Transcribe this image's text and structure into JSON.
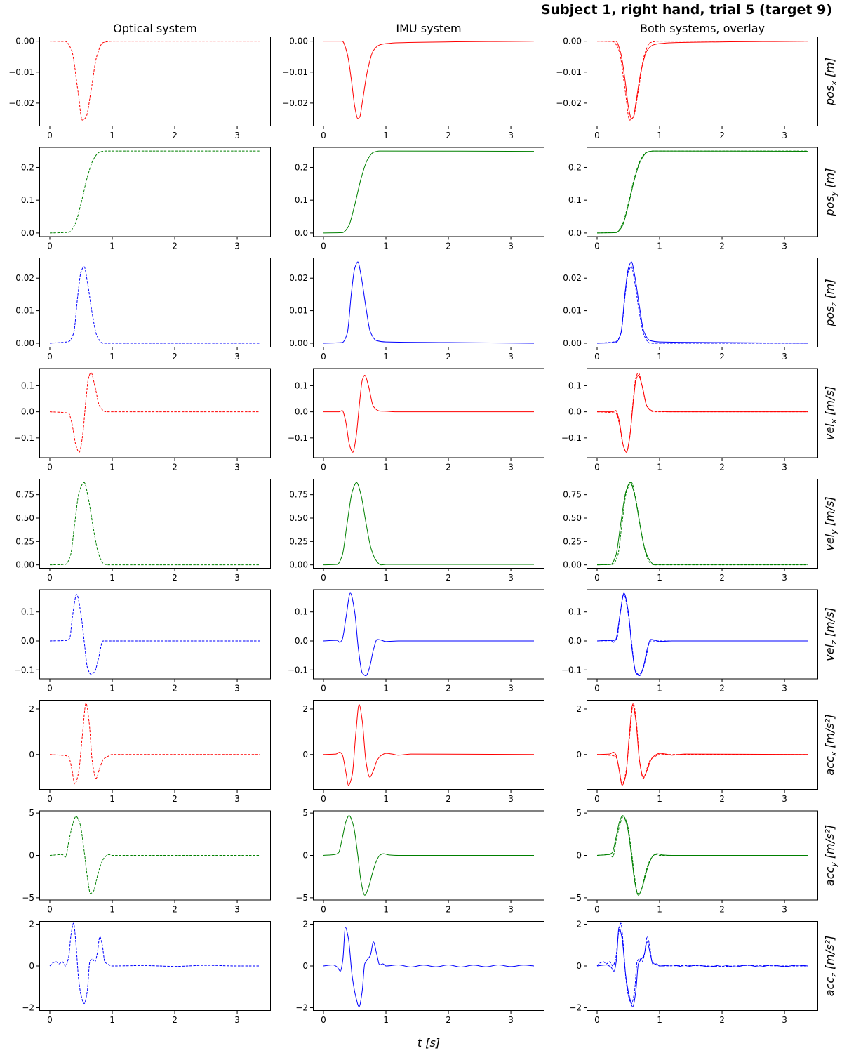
{
  "title": "Subject 1, right hand, trial 5 (target 9)",
  "column_titles": [
    "Optical system",
    "IMU system",
    "Both systems, overlay"
  ],
  "x_label": "t [s]",
  "chart_data": {
    "type": "line",
    "layout": "grid 9 rows x 3 columns",
    "x_range": [
      0,
      3.37
    ],
    "x_ticks": [
      "0",
      "1",
      "2",
      "3"
    ],
    "line_styles": {
      "optical": "dashed",
      "imu": "solid"
    },
    "rows": [
      {
        "label_main": "pos",
        "label_sub": "x",
        "unit": " [m]",
        "color": "#ff0000",
        "ylim": [
          -0.0275,
          0.0015
        ],
        "yticks": [
          "0.00",
          "−0.01",
          "−0.02"
        ],
        "ytick_values": [
          0,
          -0.01,
          -0.02
        ],
        "optical": {
          "t": [
            0,
            0.25,
            0.35,
            0.45,
            0.52,
            0.58,
            0.66,
            0.75,
            0.85,
            1.0,
            3.37
          ],
          "v": [
            0,
            -0.0001,
            -0.003,
            -0.016,
            -0.0255,
            -0.0245,
            -0.016,
            -0.005,
            -0.0005,
            0,
            0
          ]
        },
        "imu": {
          "t": [
            0,
            0.3,
            0.38,
            0.45,
            0.5,
            0.55,
            0.58,
            0.62,
            0.7,
            0.8,
            0.9,
            1.0,
            1.2,
            3.37
          ],
          "v": [
            0,
            0,
            -0.004,
            -0.013,
            -0.021,
            -0.025,
            -0.0245,
            -0.02,
            -0.01,
            -0.003,
            -0.0012,
            -0.0008,
            -0.0005,
            0
          ]
        }
      },
      {
        "label_main": "pos",
        "label_sub": "y",
        "unit": " [m]",
        "color": "#008000",
        "ylim": [
          -0.012,
          0.262
        ],
        "yticks": [
          "0.0",
          "0.1",
          "0.2"
        ],
        "ytick_values": [
          0,
          0.1,
          0.2
        ],
        "optical": {
          "t": [
            0,
            0.3,
            0.4,
            0.5,
            0.6,
            0.7,
            0.8,
            0.9,
            3.37
          ],
          "v": [
            0,
            0.002,
            0.025,
            0.09,
            0.17,
            0.225,
            0.247,
            0.25,
            0.25
          ]
        },
        "imu": {
          "t": [
            0,
            0.3,
            0.4,
            0.5,
            0.6,
            0.7,
            0.8,
            0.9,
            3.37
          ],
          "v": [
            0,
            0.001,
            0.02,
            0.085,
            0.165,
            0.222,
            0.246,
            0.25,
            0.249
          ]
        }
      },
      {
        "label_main": "pos",
        "label_sub": "z",
        "unit": " [m]",
        "color": "#0000ff",
        "ylim": [
          -0.0013,
          0.0263
        ],
        "yticks": [
          "0.00",
          "0.01",
          "0.02"
        ],
        "ytick_values": [
          0,
          0.01,
          0.02
        ],
        "optical": {
          "t": [
            0,
            0.3,
            0.38,
            0.45,
            0.5,
            0.55,
            0.6,
            0.68,
            0.75,
            0.85,
            1.0,
            3.37
          ],
          "v": [
            0,
            0.0005,
            0.003,
            0.015,
            0.022,
            0.0235,
            0.019,
            0.009,
            0.0025,
            0,
            0,
            0
          ]
        },
        "imu": {
          "t": [
            0,
            0.3,
            0.38,
            0.45,
            0.5,
            0.55,
            0.6,
            0.68,
            0.75,
            0.85,
            1.0,
            2.0,
            3.37
          ],
          "v": [
            0,
            0.0002,
            0.003,
            0.016,
            0.023,
            0.025,
            0.021,
            0.011,
            0.0035,
            0.0008,
            0.0004,
            0.0002,
            0
          ]
        }
      },
      {
        "label_main": "vel",
        "label_sub": "x",
        "unit": " [m/s]",
        "color": "#ff0000",
        "ylim": [
          -0.177,
          0.167
        ],
        "yticks": [
          "0.1",
          "0.0",
          "−0.1"
        ],
        "ytick_values": [
          0.1,
          0,
          -0.1
        ],
        "optical": {
          "t": [
            0,
            0.3,
            0.35,
            0.42,
            0.47,
            0.52,
            0.58,
            0.62,
            0.66,
            0.72,
            0.8,
            0.9,
            3.37
          ],
          "v": [
            0,
            -0.005,
            -0.04,
            -0.13,
            -0.155,
            -0.1,
            0.05,
            0.13,
            0.15,
            0.1,
            0.02,
            0,
            0
          ]
        },
        "imu": {
          "t": [
            0,
            0.25,
            0.3,
            0.35,
            0.42,
            0.47,
            0.52,
            0.58,
            0.62,
            0.66,
            0.72,
            0.8,
            0.9,
            1.0,
            1.2,
            3.37
          ],
          "v": [
            0,
            0,
            0.005,
            -0.03,
            -0.13,
            -0.155,
            -0.1,
            0.04,
            0.12,
            0.14,
            0.1,
            0.02,
            0.003,
            0.002,
            0,
            0
          ]
        }
      },
      {
        "label_main": "vel",
        "label_sub": "y",
        "unit": " [m/s]",
        "color": "#008000",
        "ylim": [
          -0.04,
          0.92
        ],
        "yticks": [
          "0.75",
          "0.50",
          "0.25",
          "0.00"
        ],
        "ytick_values": [
          0.75,
          0.5,
          0.25,
          0
        ],
        "optical": {
          "t": [
            0,
            0.25,
            0.33,
            0.4,
            0.47,
            0.55,
            0.62,
            0.7,
            0.78,
            0.85,
            0.92,
            3.37
          ],
          "v": [
            0,
            0.005,
            0.1,
            0.45,
            0.78,
            0.88,
            0.7,
            0.38,
            0.12,
            0.02,
            0,
            0
          ]
        },
        "imu": {
          "t": [
            0,
            0.22,
            0.3,
            0.38,
            0.46,
            0.53,
            0.6,
            0.68,
            0.76,
            0.84,
            0.92,
            1.0,
            3.37
          ],
          "v": [
            0,
            0.005,
            0.1,
            0.45,
            0.78,
            0.88,
            0.75,
            0.45,
            0.18,
            0.05,
            0.0,
            0.005,
            0.005
          ]
        }
      },
      {
        "label_main": "vel",
        "label_sub": "z",
        "unit": " [m/s]",
        "color": "#0000ff",
        "ylim": [
          -0.132,
          0.178
        ],
        "yticks": [
          "0.1",
          "0.0",
          "−0.1"
        ],
        "ytick_values": [
          0.1,
          0,
          -0.1
        ],
        "optical": {
          "t": [
            0,
            0.28,
            0.32,
            0.36,
            0.43,
            0.5,
            0.56,
            0.6,
            0.66,
            0.72,
            0.78,
            0.85,
            0.9,
            3.37
          ],
          "v": [
            0,
            0.002,
            0.01,
            0.08,
            0.16,
            0.09,
            -0.02,
            -0.09,
            -0.115,
            -0.105,
            -0.06,
            0,
            0,
            0
          ]
        },
        "imu": {
          "t": [
            0,
            0.22,
            0.26,
            0.3,
            0.36,
            0.43,
            0.5,
            0.56,
            0.62,
            0.68,
            0.74,
            0.8,
            0.86,
            0.92,
            1.0,
            1.2,
            3.37
          ],
          "v": [
            0,
            0.002,
            -0.005,
            0.005,
            0.08,
            0.165,
            0.1,
            -0.03,
            -0.11,
            -0.12,
            -0.09,
            -0.03,
            0.005,
            0.003,
            -0.002,
            0,
            0
          ]
        }
      },
      {
        "label_main": "acc",
        "label_sub": "x",
        "unit": " [m/s²]",
        "color": "#ff0000",
        "ylim": [
          -1.55,
          2.4
        ],
        "yticks": [
          "2",
          "0"
        ],
        "ytick_values": [
          2,
          0
        ],
        "optical": {
          "t": [
            0,
            0.25,
            0.3,
            0.35,
            0.4,
            0.46,
            0.52,
            0.58,
            0.63,
            0.68,
            0.74,
            0.8,
            0.86,
            0.92,
            1.0,
            3.37
          ],
          "v": [
            0,
            -0.05,
            -0.1,
            -0.6,
            -1.3,
            -0.8,
            0.8,
            2.25,
            1.4,
            -0.3,
            -1.05,
            -0.6,
            -0.2,
            -0.1,
            0,
            0
          ]
        },
        "imu": {
          "t": [
            0,
            0.2,
            0.26,
            0.3,
            0.36,
            0.4,
            0.46,
            0.52,
            0.57,
            0.62,
            0.68,
            0.74,
            0.8,
            0.86,
            0.92,
            1.0,
            1.1,
            1.2,
            1.4,
            3.37
          ],
          "v": [
            0,
            0.02,
            0.1,
            0.0,
            -0.8,
            -1.35,
            -0.9,
            1.0,
            2.2,
            1.5,
            -0.3,
            -1.0,
            -0.7,
            -0.25,
            -0.05,
            0.05,
            0.02,
            -0.03,
            0.02,
            0
          ]
        }
      },
      {
        "label_main": "acc",
        "label_sub": "y",
        "unit": " [m/s²]",
        "color": "#008000",
        "ylim": [
          -5.3,
          5.3
        ],
        "yticks": [
          "5",
          "0",
          "−5"
        ],
        "ytick_values": [
          5,
          0,
          -5
        ],
        "optical": {
          "t": [
            0,
            0.2,
            0.25,
            0.3,
            0.36,
            0.42,
            0.48,
            0.55,
            0.6,
            0.65,
            0.7,
            0.76,
            0.82,
            0.88,
            0.95,
            1.0,
            3.37
          ],
          "v": [
            0,
            0.1,
            -0.2,
            1.5,
            3.5,
            4.6,
            3.8,
            0.5,
            -2.5,
            -4.5,
            -4.2,
            -2.5,
            -1.0,
            -0.2,
            0.1,
            0,
            0
          ]
        },
        "imu": {
          "t": [
            0,
            0.18,
            0.24,
            0.3,
            0.36,
            0.41,
            0.48,
            0.55,
            0.6,
            0.66,
            0.72,
            0.78,
            0.84,
            0.9,
            0.96,
            1.05,
            1.2,
            3.37
          ],
          "v": [
            0,
            0.1,
            0.3,
            2.0,
            4.0,
            4.7,
            3.5,
            0.0,
            -3.0,
            -4.7,
            -3.8,
            -2.2,
            -0.8,
            0.0,
            0.2,
            0.05,
            0,
            0
          ]
        }
      },
      {
        "label_main": "acc",
        "label_sub": "z",
        "unit": " [m/s²]",
        "color": "#0000ff",
        "ylim": [
          -2.15,
          2.15
        ],
        "yticks": [
          "2",
          "0",
          "−2"
        ],
        "ytick_values": [
          2,
          0,
          -2
        ],
        "optical": {
          "t": [
            0,
            0.05,
            0.1,
            0.15,
            0.2,
            0.25,
            0.3,
            0.34,
            0.38,
            0.42,
            0.46,
            0.5,
            0.55,
            0.6,
            0.64,
            0.68,
            0.72,
            0.76,
            0.8,
            0.84,
            0.88,
            0.92,
            1.0,
            1.5,
            2.0,
            2.5,
            3.0,
            3.37
          ],
          "v": [
            0,
            0.15,
            0.2,
            0.1,
            0.2,
            0.0,
            0.4,
            1.5,
            2.05,
            1.0,
            -0.6,
            -1.4,
            -1.8,
            -1.2,
            0.2,
            0.35,
            0.2,
            0.6,
            1.4,
            1.0,
            0.2,
            0.1,
            0.0,
            0.02,
            -0.02,
            0.03,
            0.0,
            0.0
          ]
        },
        "imu": {
          "t": [
            0,
            0.15,
            0.22,
            0.27,
            0.31,
            0.35,
            0.4,
            0.46,
            0.52,
            0.57,
            0.62,
            0.66,
            0.7,
            0.75,
            0.8,
            0.85,
            0.9,
            0.95,
            1.0,
            1.2,
            1.4,
            1.6,
            1.8,
            2.0,
            2.2,
            2.4,
            2.6,
            2.8,
            3.0,
            3.2,
            3.37
          ],
          "v": [
            0,
            0.05,
            -0.05,
            -0.25,
            0.3,
            1.85,
            1.3,
            -0.5,
            -1.5,
            -1.95,
            -1.2,
            0.1,
            0.3,
            0.5,
            1.15,
            0.6,
            0.05,
            0.1,
            0.0,
            0.05,
            -0.05,
            0.04,
            -0.04,
            0.05,
            -0.05,
            0.04,
            -0.04,
            0.05,
            -0.03,
            0.04,
            0.0
          ]
        }
      }
    ]
  }
}
